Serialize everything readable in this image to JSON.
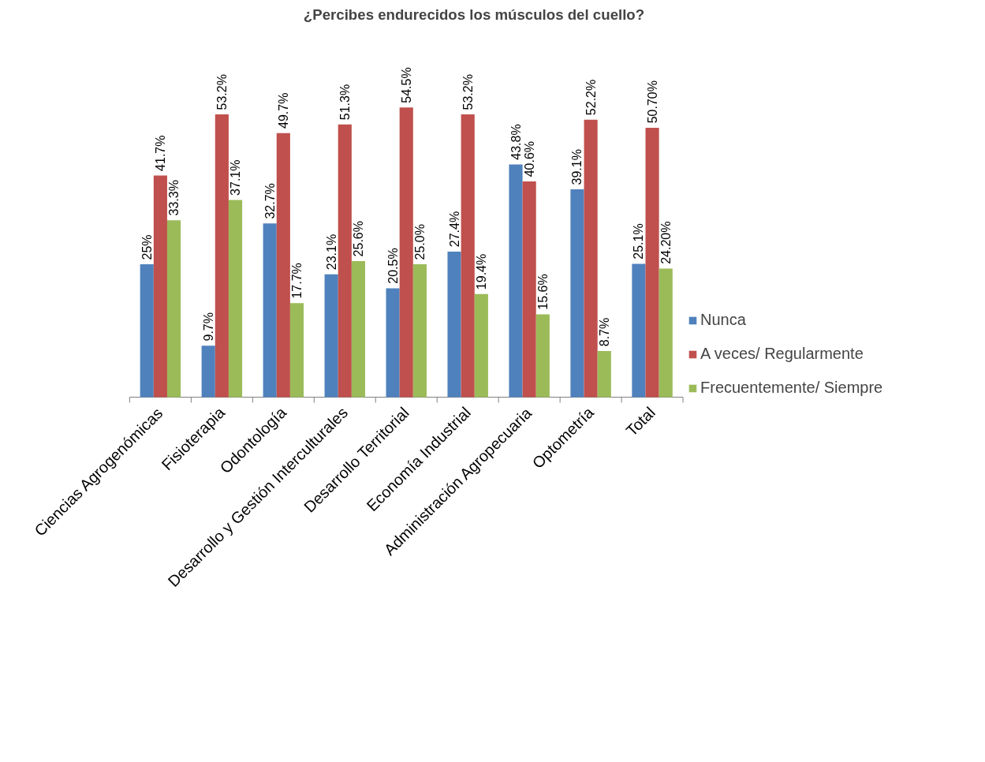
{
  "chart_data": {
    "type": "bar",
    "title": "¿Percibes endurecidos los músculos del cuello?",
    "categories": [
      "Ciencias Agrogenómicas",
      "Fisioterapia",
      "Odontología",
      "Desarrollo y Gestión Interculturales",
      "Desarrollo Territorial",
      "Economía Industrial",
      "Administración Agropecuaria",
      "Optometría",
      "Total"
    ],
    "series": [
      {
        "name": "Nunca",
        "color": "#4f81bd",
        "values": [
          25,
          9.7,
          32.7,
          23.1,
          20.5,
          27.4,
          43.8,
          39.1,
          25.1
        ],
        "value_labels": [
          "25%",
          "9.7%",
          "32.7%",
          "23.1%",
          "20.5%",
          "27.4%",
          "43.8%",
          "39.1%",
          "25.1%"
        ]
      },
      {
        "name": "A veces/ Regularmente",
        "color": "#c0504d",
        "values": [
          41.7,
          53.2,
          49.7,
          51.3,
          54.5,
          53.2,
          40.6,
          52.2,
          50.7
        ],
        "value_labels": [
          "41.7%",
          "53.2%",
          "49.7%",
          "51.3%",
          "54.5%",
          "53.2%",
          "40.6%",
          "52.2%",
          "50.70%"
        ]
      },
      {
        "name": "Frecuentemente/ Siempre",
        "color": "#9bbb59",
        "values": [
          33.3,
          37.1,
          17.7,
          25.6,
          25.0,
          19.4,
          15.6,
          8.7,
          24.2
        ],
        "value_labels": [
          "33.3%",
          "37.1%",
          "17.7%",
          "25.6%",
          "25.0%",
          "19.4%",
          "15.6%",
          "8.7%",
          "24.20%"
        ]
      }
    ],
    "tick_labels": "x",
    "grid": false,
    "legend": "right"
  }
}
